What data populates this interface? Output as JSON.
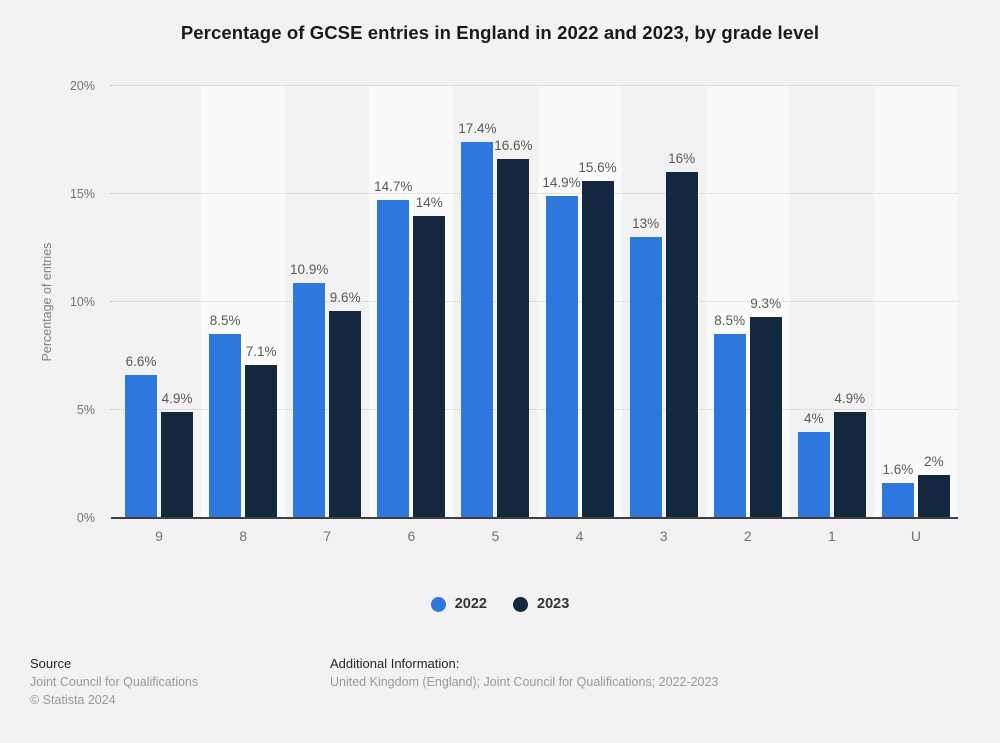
{
  "title": "Percentage of GCSE entries in England in 2022 and 2023, by grade level",
  "chart_data": {
    "type": "bar",
    "title": "Percentage of GCSE entries in England in 2022 and 2023, by grade level",
    "xlabel": "",
    "ylabel": "Percentage of entries",
    "ylim": [
      0,
      20
    ],
    "yticks": [
      0,
      5,
      10,
      15,
      20
    ],
    "ytick_labels": [
      "0%",
      "5%",
      "10%",
      "15%",
      "20%"
    ],
    "grid": "horizontal-dotted",
    "legend_position": "bottom",
    "categories": [
      "9",
      "8",
      "7",
      "6",
      "5",
      "4",
      "3",
      "2",
      "1",
      "U"
    ],
    "series": [
      {
        "name": "2022",
        "color": "#2d77dd",
        "values": [
          6.6,
          8.5,
          10.9,
          14.7,
          17.4,
          14.9,
          13,
          8.5,
          4,
          1.6
        ],
        "labels": [
          "6.6%",
          "8.5%",
          "10.9%",
          "14.7%",
          "17.4%",
          "14.9%",
          "13%",
          "8.5%",
          "4%",
          "1.6%"
        ]
      },
      {
        "name": "2023",
        "color": "#13273f",
        "values": [
          4.9,
          7.1,
          9.6,
          14,
          16.6,
          15.6,
          16,
          9.3,
          4.9,
          2
        ],
        "labels": [
          "4.9%",
          "7.1%",
          "9.6%",
          "14%",
          "16.6%",
          "15.6%",
          "16%",
          "9.3%",
          "4.9%",
          "2%"
        ]
      }
    ]
  },
  "colors": {
    "background": "#f2f2f2",
    "stripe": "#fafafa",
    "grid": "#c9c9c9",
    "axis": "#3f3f3f",
    "value_label": "#595959",
    "tick_label": "#737373"
  },
  "footer": {
    "source_label": "Source",
    "source_value": "Joint Council for Qualifications",
    "copyright": "© Statista 2024",
    "additional_label": "Additional Information:",
    "additional_value": "United Kingdom (England); Joint Council for Qualifications; 2022-2023"
  }
}
